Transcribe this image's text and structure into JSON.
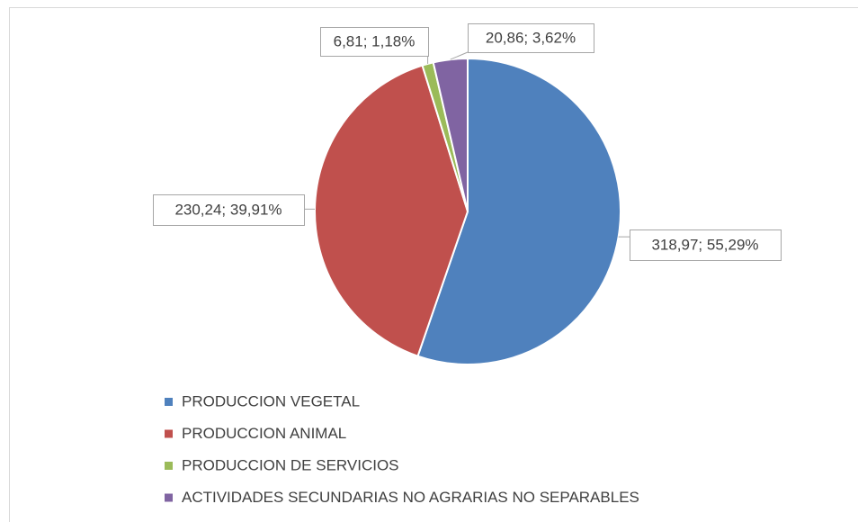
{
  "chart_data": {
    "type": "pie",
    "categories": [
      "PRODUCCION VEGETAL",
      "PRODUCCION ANIMAL",
      "PRODUCCION DE SERVICIOS",
      "ACTIVIDADES SECUNDARIAS NO AGRARIAS NO SEPARABLES"
    ],
    "values": [
      318.97,
      230.24,
      6.81,
      20.86
    ],
    "value_labels": [
      "318,97; 55,29%",
      "230,24; 39,91%",
      "6,81; 1,18%",
      "20,86; 3,62%"
    ],
    "colors": [
      "#4f81bd",
      "#c0504d",
      "#9bbb59",
      "#8064a2"
    ],
    "legend": "bottom"
  }
}
